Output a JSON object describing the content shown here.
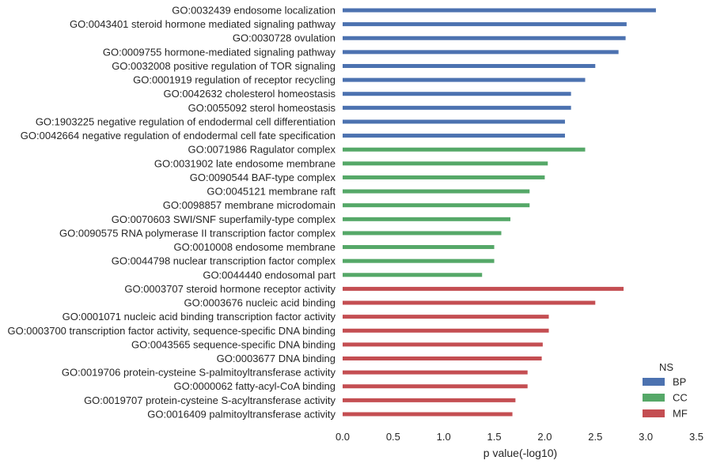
{
  "chart_data": {
    "type": "bar",
    "orientation": "horizontal",
    "xlabel": "p value(-log10)",
    "xlim": [
      0.0,
      3.5
    ],
    "xticks": [
      "0.0",
      "0.5",
      "1.0",
      "1.5",
      "2.0",
      "2.5",
      "3.0",
      "3.5"
    ],
    "grid": false,
    "legend": {
      "title": "NS",
      "placement": "bottom-right",
      "entries": [
        {
          "name": "BP",
          "color": "#4c72b0"
        },
        {
          "name": "CC",
          "color": "#55a868"
        },
        {
          "name": "MF",
          "color": "#c44e52"
        }
      ]
    },
    "categories": [
      "GO:0032439 endosome localization",
      "GO:0043401 steroid hormone mediated signaling pathway",
      "GO:0030728 ovulation",
      "GO:0009755 hormone-mediated signaling pathway",
      "GO:0032008 positive regulation of TOR signaling",
      "GO:0001919 regulation of receptor recycling",
      "GO:0042632 cholesterol homeostasis",
      "GO:0055092 sterol homeostasis",
      "GO:1903225 negative regulation of endodermal cell differentiation",
      "GO:0042664 negative regulation of endodermal cell fate specification",
      "GO:0071986 Ragulator complex",
      "GO:0031902 late endosome membrane",
      "GO:0090544 BAF-type complex",
      "GO:0045121 membrane raft",
      "GO:0098857 membrane microdomain",
      "GO:0070603 SWI/SNF superfamily-type complex",
      "GO:0090575 RNA polymerase II transcription factor complex",
      "GO:0010008 endosome membrane",
      "GO:0044798 nuclear transcription factor complex",
      "GO:0044440 endosomal part",
      "GO:0003707 steroid hormone receptor activity",
      "GO:0003676 nucleic acid binding",
      "GO:0001071 nucleic acid binding transcription factor activity",
      "GO:0003700 transcription factor activity, sequence-specific DNA binding",
      "GO:0043565 sequence-specific DNA binding",
      "GO:0003677 DNA binding",
      "GO:0019706 protein-cysteine S-palmitoyltransferase activity",
      "GO:0000062 fatty-acyl-CoA binding",
      "GO:0019707 protein-cysteine S-acyltransferase activity",
      "GO:0016409 palmitoyltransferase activity"
    ],
    "groups": [
      "BP",
      "BP",
      "BP",
      "BP",
      "BP",
      "BP",
      "BP",
      "BP",
      "BP",
      "BP",
      "CC",
      "CC",
      "CC",
      "CC",
      "CC",
      "CC",
      "CC",
      "CC",
      "CC",
      "CC",
      "MF",
      "MF",
      "MF",
      "MF",
      "MF",
      "MF",
      "MF",
      "MF",
      "MF",
      "MF"
    ],
    "values": [
      3.1,
      2.81,
      2.8,
      2.73,
      2.5,
      2.4,
      2.26,
      2.26,
      2.2,
      2.2,
      2.4,
      2.03,
      2.0,
      1.85,
      1.85,
      1.66,
      1.57,
      1.5,
      1.5,
      1.38,
      2.78,
      2.5,
      2.04,
      2.04,
      1.98,
      1.97,
      1.83,
      1.83,
      1.71,
      1.68
    ]
  }
}
